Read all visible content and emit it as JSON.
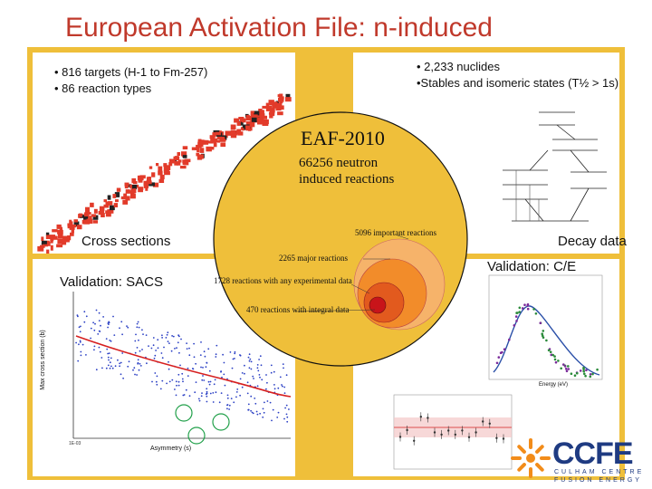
{
  "title": "European Activation File: n-induced",
  "top_left": {
    "bullets": [
      "• 816 targets (H-1 to Fm-257)",
      "• 86 reaction types"
    ],
    "label": "Cross sections"
  },
  "top_right": {
    "bullets": [
      "• 2,233 nuclides",
      "•Stables and isomeric states (T½ > 1s)"
    ],
    "label": "Decay data"
  },
  "bottom_left": {
    "label": "Validation: SACS",
    "xlabel": "Asymmetry (s)",
    "ylabel": "Max cross section (b)"
  },
  "bottom_right": {
    "label": "Validation: C/E",
    "xlabel": "Energy (eV)"
  },
  "center": {
    "library": "EAF-2010",
    "reactions_line1": "66256 neutron",
    "reactions_line2": "induced reactions",
    "important": "5096 important reactions",
    "major": "2265 major reactions",
    "experimental": "1728 reactions with any experimental data",
    "integral": "470 reactions with integral data"
  },
  "logo": {
    "name": "CCFE",
    "line1": "CULHAM CENTRE",
    "line2": "FUSION ENERGY"
  },
  "colors": {
    "title": "#c0392b",
    "frame": "#efbf3a",
    "logo": "#1f3b82",
    "chart_red": "#d62020"
  }
}
